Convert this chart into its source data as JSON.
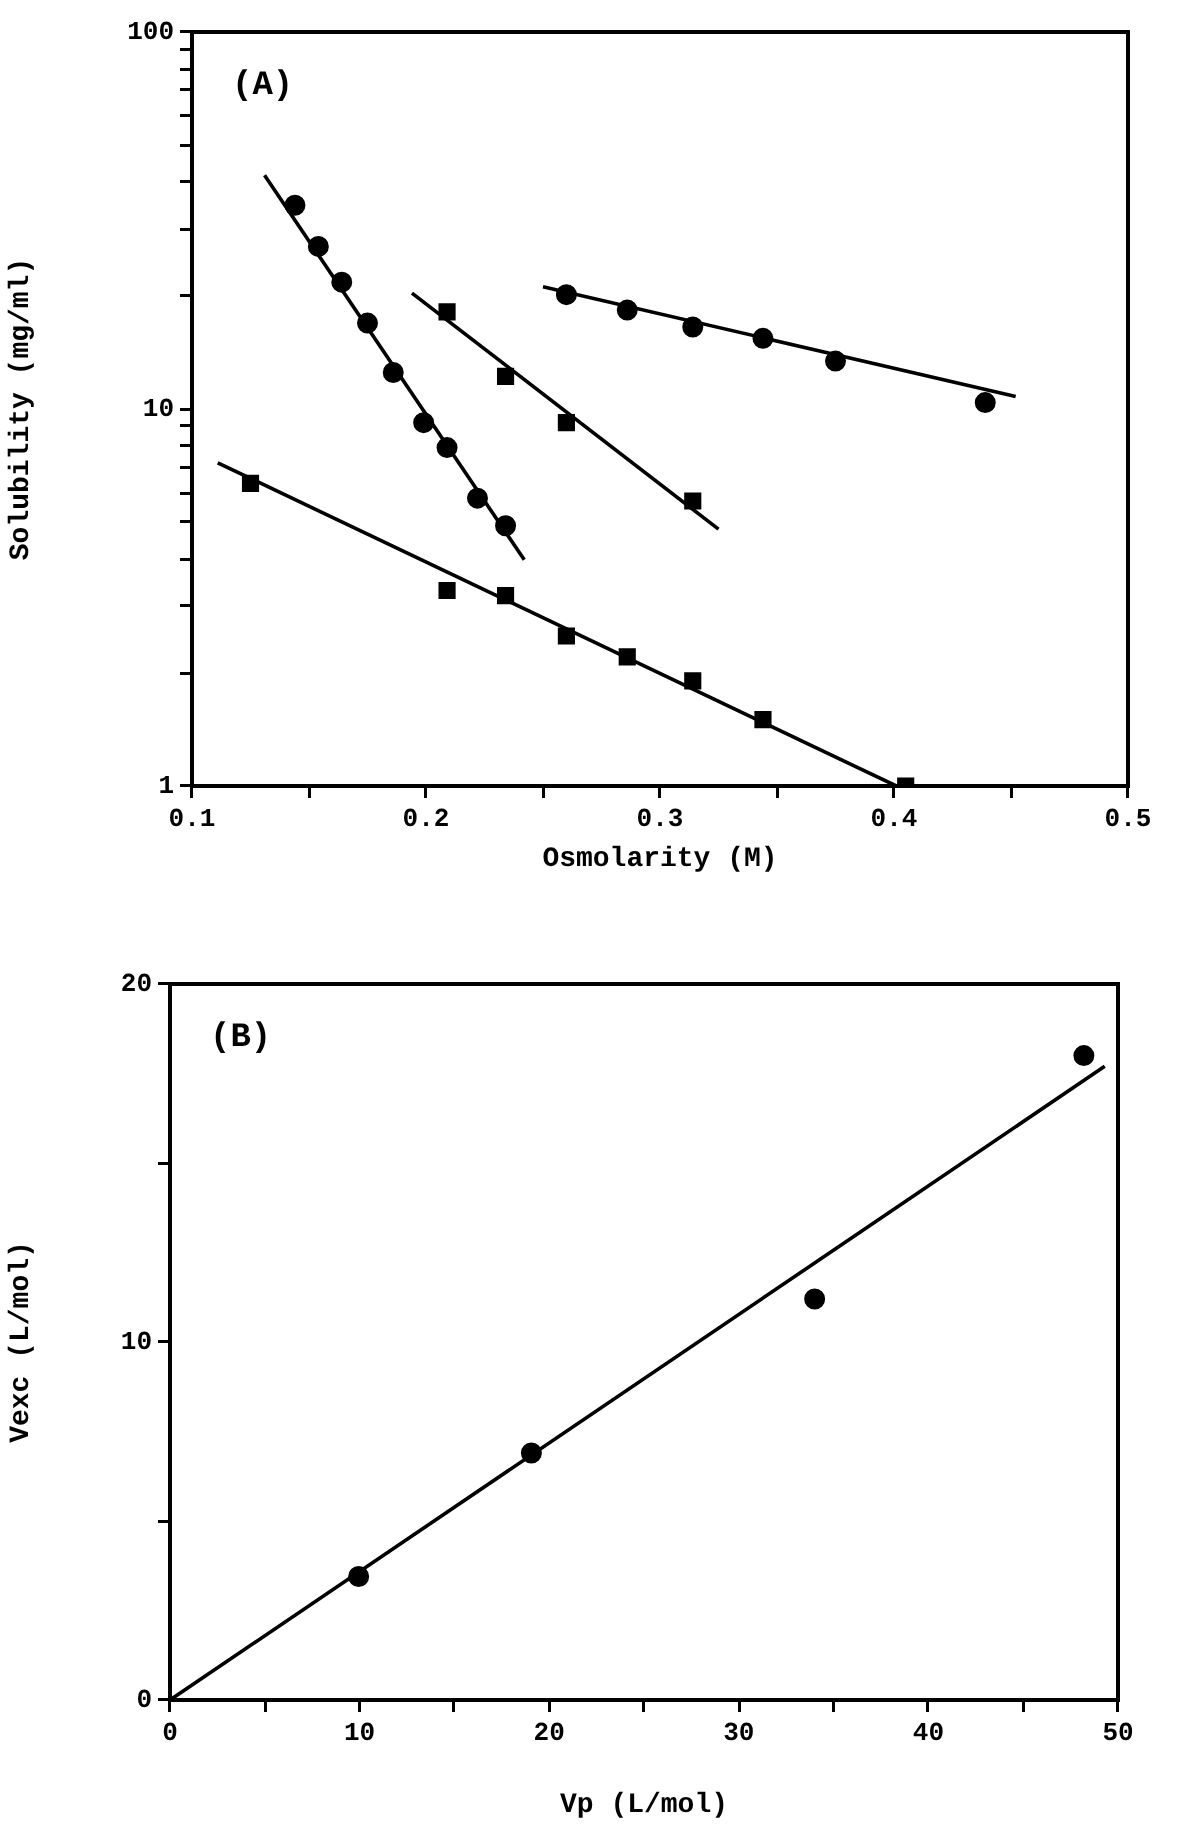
{
  "chart_data": [
    {
      "type": "scatter",
      "xlabel": "Osmolarity (M)",
      "ylabel": "Solubility (mg/ml)",
      "annotations": [
        "(A)"
      ],
      "log": "y",
      "grid": false,
      "legend": false,
      "xlim": [
        0.1,
        0.5
      ],
      "xticks": [
        0.1,
        {
          "value": 0.15,
          "label": null
        },
        0.2,
        {
          "value": 0.25,
          "label": null
        },
        0.3,
        {
          "value": 0.35,
          "label": null
        },
        0.4,
        {
          "value": 0.45,
          "label": null
        },
        0.5
      ],
      "ylim": [
        1,
        100
      ],
      "yticks": [
        1,
        {
          "value": 2,
          "label": null
        },
        {
          "value": 3,
          "label": null
        },
        {
          "value": 4,
          "label": null
        },
        {
          "value": 5,
          "label": null
        },
        {
          "value": 6,
          "label": null
        },
        {
          "value": 7,
          "label": null
        },
        {
          "value": 8,
          "label": null
        },
        {
          "value": 9,
          "label": null
        },
        10,
        {
          "value": 20,
          "label": null
        },
        {
          "value": 30,
          "label": null
        },
        {
          "value": 40,
          "label": null
        },
        {
          "value": 50,
          "label": null
        },
        {
          "value": 60,
          "label": null
        },
        {
          "value": 70,
          "label": null
        },
        {
          "value": 80,
          "label": null
        },
        {
          "value": 90,
          "label": null
        },
        100
      ],
      "series": [
        {
          "type": "scatter",
          "marker": "circle",
          "color": "#000000",
          "x": [
            0.144,
            0.154,
            0.164,
            0.175,
            0.186,
            0.199,
            0.209,
            0.222,
            0.234
          ],
          "values": [
            34.7,
            27.0,
            21.7,
            16.9,
            12.5,
            9.2,
            7.9,
            5.8,
            4.9
          ]
        },
        {
          "type": "line",
          "marker": "none",
          "color": "#000000",
          "x": [
            0.131,
            0.242
          ],
          "values": [
            41.7,
            3.98
          ]
        },
        {
          "type": "scatter",
          "marker": "square",
          "color": "#000000",
          "x": [
            0.209,
            0.234,
            0.26,
            0.314
          ],
          "values": [
            18.1,
            12.2,
            9.2,
            5.7
          ]
        },
        {
          "type": "line",
          "marker": "none",
          "color": "#000000",
          "x": [
            0.194,
            0.325
          ],
          "values": [
            20.3,
            4.8
          ]
        },
        {
          "type": "scatter",
          "marker": "circle",
          "color": "#000000",
          "x": [
            0.26,
            0.286,
            0.314,
            0.344,
            0.375,
            0.439
          ],
          "values": [
            20.1,
            18.3,
            16.5,
            15.4,
            13.4,
            10.4
          ]
        },
        {
          "type": "line",
          "marker": "none",
          "color": "#000000",
          "x": [
            0.25,
            0.452
          ],
          "values": [
            21.1,
            10.8
          ]
        },
        {
          "type": "scatter",
          "marker": "square",
          "color": "#000000",
          "x": [
            0.125,
            0.209,
            0.234,
            0.26,
            0.286,
            0.314,
            0.344,
            0.405
          ],
          "values": [
            6.35,
            3.3,
            3.2,
            2.5,
            2.2,
            1.9,
            1.5,
            1.0
          ]
        },
        {
          "type": "line",
          "marker": "none",
          "color": "#000000",
          "x": [
            0.111,
            0.401
          ],
          "values": [
            7.2,
            1.0
          ]
        }
      ]
    },
    {
      "type": "scatter",
      "xlabel": "Vp (L/mol)",
      "ylabel": "Vexc (L/mol)",
      "annotations": [
        "(B)"
      ],
      "grid": false,
      "legend": false,
      "xlim": [
        0,
        50
      ],
      "xticks": [
        0,
        {
          "value": 5,
          "label": null
        },
        10,
        {
          "value": 15,
          "label": null
        },
        20,
        {
          "value": 25,
          "label": null
        },
        30,
        {
          "value": 35,
          "label": null
        },
        40,
        {
          "value": 45,
          "label": null
        },
        50
      ],
      "ylim": [
        0,
        20
      ],
      "yticks": [
        0,
        {
          "value": 5,
          "label": null
        },
        10,
        {
          "value": 15,
          "label": null
        },
        20
      ],
      "series": [
        {
          "type": "scatter",
          "marker": "circle",
          "color": "#000000",
          "x": [
            9.95,
            19.06,
            34.0,
            48.2
          ],
          "values": [
            3.45,
            6.9,
            11.2,
            18.0
          ]
        },
        {
          "type": "line",
          "marker": "none",
          "color": "#000000",
          "x": [
            0,
            49.3
          ],
          "values": [
            0,
            17.7
          ]
        }
      ]
    }
  ]
}
